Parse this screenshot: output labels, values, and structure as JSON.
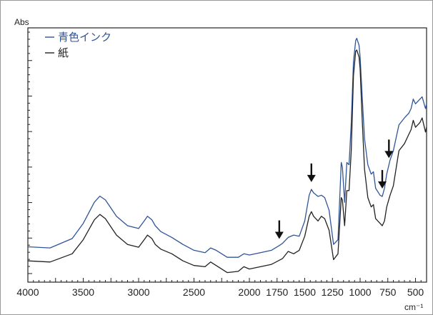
{
  "chart_data": {
    "type": "line",
    "ylabel": "Abs",
    "xlabel": "cm⁻¹",
    "xlim": [
      4000,
      400
    ],
    "x_reversed": true,
    "x_ticks": [
      4000,
      3500,
      3000,
      2500,
      2000,
      1750,
      1500,
      1250,
      1000,
      750,
      500
    ],
    "x_tick_labels": [
      "4000",
      "3500",
      "3000",
      "2500",
      "2000",
      "1750",
      "1500",
      "1250",
      "1000",
      "750",
      "500"
    ],
    "ylim": [
      0,
      1
    ],
    "y_tick_count": 34,
    "y_major_every": 5,
    "legend_position": "top-left",
    "series": [
      {
        "name": "青色インク",
        "color": "#2f5597",
        "points": [
          [
            4000,
            0.09
          ],
          [
            3800,
            0.085
          ],
          [
            3600,
            0.125
          ],
          [
            3500,
            0.19
          ],
          [
            3400,
            0.28
          ],
          [
            3350,
            0.306
          ],
          [
            3300,
            0.29
          ],
          [
            3200,
            0.22
          ],
          [
            3100,
            0.18
          ],
          [
            3000,
            0.168
          ],
          [
            2950,
            0.2
          ],
          [
            2920,
            0.22
          ],
          [
            2880,
            0.205
          ],
          [
            2850,
            0.18
          ],
          [
            2800,
            0.155
          ],
          [
            2700,
            0.13
          ],
          [
            2600,
            0.1
          ],
          [
            2500,
            0.075
          ],
          [
            2400,
            0.065
          ],
          [
            2350,
            0.085
          ],
          [
            2300,
            0.075
          ],
          [
            2200,
            0.045
          ],
          [
            2100,
            0.045
          ],
          [
            2050,
            0.06
          ],
          [
            2000,
            0.055
          ],
          [
            1900,
            0.065
          ],
          [
            1800,
            0.075
          ],
          [
            1730,
            0.095
          ],
          [
            1700,
            0.105
          ],
          [
            1650,
            0.13
          ],
          [
            1600,
            0.14
          ],
          [
            1550,
            0.135
          ],
          [
            1500,
            0.2
          ],
          [
            1460,
            0.31
          ],
          [
            1440,
            0.335
          ],
          [
            1420,
            0.32
          ],
          [
            1380,
            0.305
          ],
          [
            1350,
            0.31
          ],
          [
            1320,
            0.3
          ],
          [
            1280,
            0.245
          ],
          [
            1240,
            0.1
          ],
          [
            1200,
            0.12
          ],
          [
            1170,
            0.45
          ],
          [
            1160,
            0.43
          ],
          [
            1140,
            0.28
          ],
          [
            1120,
            0.45
          ],
          [
            1100,
            0.44
          ],
          [
            1080,
            0.62
          ],
          [
            1060,
            0.88
          ],
          [
            1040,
            0.97
          ],
          [
            1030,
            0.98
          ],
          [
            1010,
            0.95
          ],
          [
            1000,
            0.9
          ],
          [
            980,
            0.72
          ],
          [
            960,
            0.55
          ],
          [
            930,
            0.44
          ],
          [
            900,
            0.4
          ],
          [
            880,
            0.41
          ],
          [
            860,
            0.34
          ],
          [
            820,
            0.31
          ],
          [
            800,
            0.305
          ],
          [
            780,
            0.34
          ],
          [
            760,
            0.4
          ],
          [
            730,
            0.46
          ],
          [
            700,
            0.5
          ],
          [
            650,
            0.61
          ],
          [
            600,
            0.64
          ],
          [
            560,
            0.66
          ],
          [
            540,
            0.68
          ],
          [
            520,
            0.72
          ],
          [
            500,
            0.7
          ],
          [
            460,
            0.72
          ],
          [
            440,
            0.73
          ],
          [
            410,
            0.68
          ],
          [
            400,
            0.7
          ]
        ]
      },
      {
        "name": "紙",
        "color": "#222222",
        "points": [
          [
            4000,
            0.03
          ],
          [
            3800,
            0.025
          ],
          [
            3600,
            0.06
          ],
          [
            3500,
            0.12
          ],
          [
            3400,
            0.205
          ],
          [
            3350,
            0.228
          ],
          [
            3300,
            0.21
          ],
          [
            3200,
            0.14
          ],
          [
            3100,
            0.1
          ],
          [
            3000,
            0.088
          ],
          [
            2950,
            0.12
          ],
          [
            2920,
            0.14
          ],
          [
            2880,
            0.125
          ],
          [
            2850,
            0.1
          ],
          [
            2800,
            0.08
          ],
          [
            2700,
            0.06
          ],
          [
            2600,
            0.03
          ],
          [
            2500,
            0.01
          ],
          [
            2400,
            0.005
          ],
          [
            2350,
            0.025
          ],
          [
            2300,
            0.01
          ],
          [
            2200,
            -0.02
          ],
          [
            2100,
            -0.015
          ],
          [
            2050,
            0.005
          ],
          [
            2000,
            -0.005
          ],
          [
            1900,
            0.005
          ],
          [
            1800,
            0.015
          ],
          [
            1700,
            0.04
          ],
          [
            1650,
            0.07
          ],
          [
            1600,
            0.06
          ],
          [
            1550,
            0.075
          ],
          [
            1500,
            0.135
          ],
          [
            1460,
            0.22
          ],
          [
            1440,
            0.24
          ],
          [
            1420,
            0.22
          ],
          [
            1380,
            0.2
          ],
          [
            1350,
            0.22
          ],
          [
            1320,
            0.21
          ],
          [
            1280,
            0.16
          ],
          [
            1240,
            0.035
          ],
          [
            1200,
            0.06
          ],
          [
            1170,
            0.3
          ],
          [
            1160,
            0.29
          ],
          [
            1140,
            0.18
          ],
          [
            1120,
            0.33
          ],
          [
            1100,
            0.33
          ],
          [
            1080,
            0.5
          ],
          [
            1060,
            0.82
          ],
          [
            1040,
            0.925
          ],
          [
            1030,
            0.93
          ],
          [
            1010,
            0.9
          ],
          [
            1000,
            0.85
          ],
          [
            980,
            0.62
          ],
          [
            960,
            0.42
          ],
          [
            930,
            0.3
          ],
          [
            900,
            0.26
          ],
          [
            880,
            0.27
          ],
          [
            860,
            0.21
          ],
          [
            820,
            0.19
          ],
          [
            800,
            0.18
          ],
          [
            780,
            0.2
          ],
          [
            760,
            0.26
          ],
          [
            730,
            0.31
          ],
          [
            700,
            0.35
          ],
          [
            650,
            0.5
          ],
          [
            600,
            0.53
          ],
          [
            560,
            0.57
          ],
          [
            540,
            0.59
          ],
          [
            520,
            0.63
          ],
          [
            500,
            0.6
          ],
          [
            460,
            0.62
          ],
          [
            440,
            0.64
          ],
          [
            410,
            0.58
          ],
          [
            400,
            0.6
          ]
        ]
      }
    ],
    "annotations": [
      {
        "type": "arrow",
        "x": 1730,
        "y": 0.105
      },
      {
        "type": "arrow",
        "x": 1440,
        "y": 0.348
      },
      {
        "type": "arrow",
        "x": 800,
        "y": 0.32
      },
      {
        "type": "arrow",
        "x": 740,
        "y": 0.45
      }
    ]
  }
}
